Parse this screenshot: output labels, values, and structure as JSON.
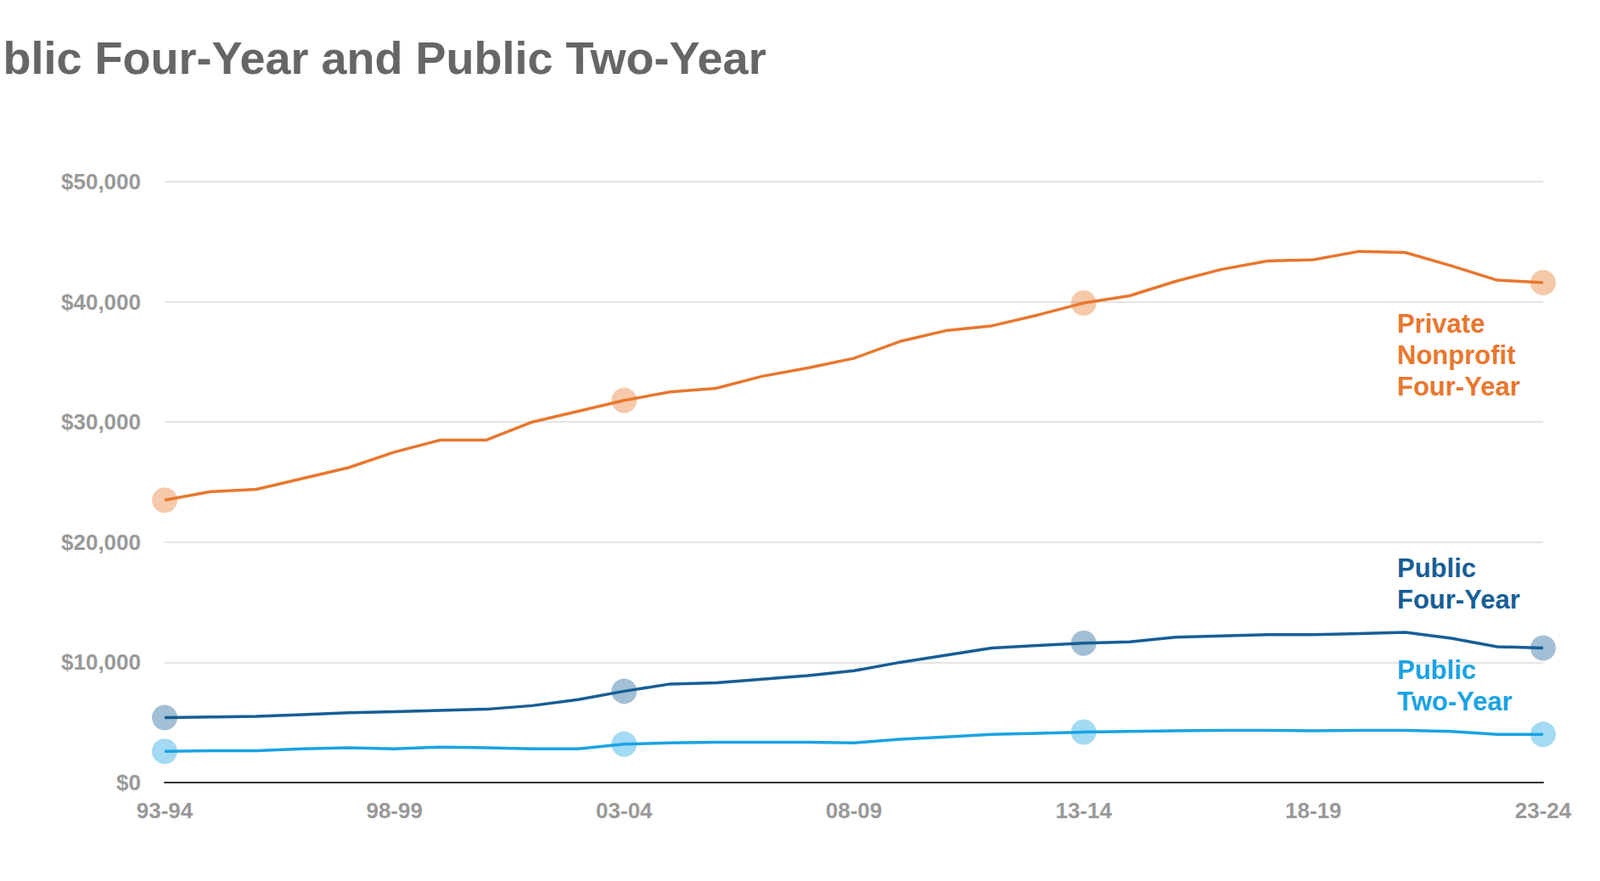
{
  "chart_data": {
    "type": "line",
    "title": "Private Nonprofit Four-Year, Public Four-Year and Public Two-Year",
    "categories": [
      "93-94",
      null,
      null,
      null,
      null,
      "98-99",
      null,
      null,
      null,
      null,
      "03-04",
      null,
      null,
      null,
      null,
      "08-09",
      null,
      null,
      null,
      null,
      "13-14",
      null,
      null,
      null,
      null,
      "18-19",
      null,
      null,
      null,
      null,
      "23-24"
    ],
    "series": [
      {
        "name": "Private Nonprofit Four-Year",
        "color": "#e8772e",
        "values": [
          23500,
          24200,
          24400,
          25300,
          26200,
          27500,
          28500,
          28500,
          30000,
          30900,
          31800,
          32500,
          32800,
          33800,
          34500,
          35300,
          36700,
          37600,
          38000,
          38900,
          39900,
          40500,
          41700,
          42700,
          43400,
          43500,
          44200,
          44100,
          43000,
          41800,
          41600
        ]
      },
      {
        "name": "Public Four-Year",
        "color": "#175e96",
        "values": [
          5400,
          5450,
          5500,
          5650,
          5800,
          5900,
          6000,
          6100,
          6400,
          6900,
          7600,
          8200,
          8300,
          8600,
          8900,
          9300,
          10000,
          10600,
          11200,
          11400,
          11600,
          11700,
          12100,
          12200,
          12300,
          12300,
          12400,
          12500,
          12000,
          11300,
          11200
        ]
      },
      {
        "name": "Public Two-Year",
        "color": "#1aa3e3",
        "values": [
          2600,
          2650,
          2650,
          2800,
          2900,
          2800,
          2950,
          2900,
          2800,
          2800,
          3200,
          3300,
          3350,
          3350,
          3350,
          3300,
          3600,
          3800,
          4000,
          4100,
          4200,
          4250,
          4300,
          4350,
          4350,
          4300,
          4350,
          4350,
          4250,
          4000,
          4000
        ]
      }
    ],
    "ylim": [
      0,
      50000
    ],
    "yticks": [
      {
        "value": 0,
        "label": "$0"
      },
      {
        "value": 10000,
        "label": "$10,000"
      },
      {
        "value": 20000,
        "label": "$20,000"
      },
      {
        "value": 30000,
        "label": "$30,000"
      },
      {
        "value": 40000,
        "label": "$40,000"
      },
      {
        "value": 50000,
        "label": "$50,000"
      }
    ],
    "grid": true,
    "marker": "circle"
  }
}
